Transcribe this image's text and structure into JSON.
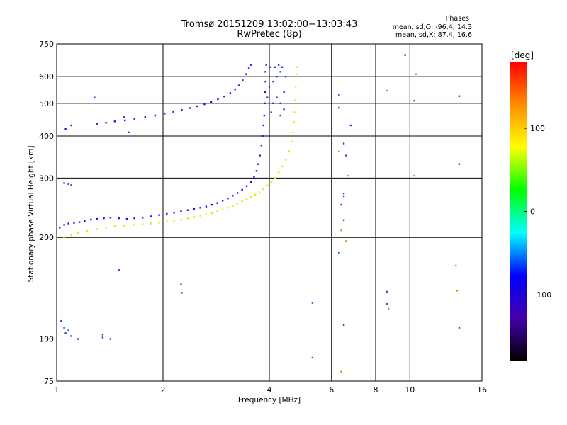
{
  "header": {
    "title_line1": "Tromsø 20151209 13:02:00−13:03:43",
    "title_line2": "RwPretec (8p)"
  },
  "phase_box": {
    "heading": "Phases",
    "line_o": "mean, sd,O: -96.4, 14.3",
    "line_x": "mean, sd,X: 87.4, 16.6"
  },
  "colorbar": {
    "unit": "[deg]",
    "range": [
      -180,
      180
    ],
    "tick_labels": [
      "100",
      "0",
      "−100"
    ],
    "tick_values": [
      100,
      0,
      -100
    ],
    "stops": [
      "#ff0000",
      "#ff8c00",
      "#ffff00",
      "#00ff00",
      "#00ffff",
      "#0000ff",
      "#4400aa",
      "#000000"
    ]
  },
  "chart_data": {
    "type": "scatter",
    "xlabel": "Frequency [MHz]",
    "ylabel": "Stationary phase Virtual Height [km]",
    "xscale": "log2",
    "yscale": "log",
    "xlim": [
      1,
      16
    ],
    "ylim": [
      75,
      750
    ],
    "x_ticks": [
      1,
      2,
      4,
      6,
      8,
      10,
      16
    ],
    "x_tick_labels": [
      "1",
      "2",
      "4",
      "6",
      "8",
      "10",
      "16"
    ],
    "y_ticks": [
      75,
      100,
      200,
      300,
      400,
      500,
      600,
      750
    ],
    "y_tick_labels": [
      "75",
      "100",
      "200",
      "300",
      "400",
      "500",
      "600",
      "750"
    ],
    "grid": true,
    "colors": {
      "o_mode": "#1a1aee",
      "x_mode": "#e8e800",
      "o_alt": "#2a3ae0"
    },
    "series": [
      {
        "points": [
          [
            1.02,
            214
          ],
          [
            1.05,
            218
          ],
          [
            1.08,
            220
          ],
          [
            1.12,
            221
          ],
          [
            1.16,
            222
          ],
          [
            1.2,
            224
          ],
          [
            1.25,
            226
          ],
          [
            1.3,
            227
          ],
          [
            1.36,
            228
          ],
          [
            1.42,
            229
          ],
          [
            1.5,
            228
          ],
          [
            1.58,
            227
          ],
          [
            1.66,
            228
          ],
          [
            1.75,
            229
          ],
          [
            1.85,
            231
          ],
          [
            1.95,
            233
          ],
          [
            2.05,
            235
          ],
          [
            2.15,
            237
          ],
          [
            2.25,
            239
          ],
          [
            2.35,
            241
          ],
          [
            2.45,
            243
          ],
          [
            2.55,
            245
          ],
          [
            2.65,
            247
          ],
          [
            2.75,
            250
          ],
          [
            2.85,
            253
          ],
          [
            2.95,
            257
          ],
          [
            3.05,
            261
          ],
          [
            3.15,
            266
          ],
          [
            3.25,
            271
          ],
          [
            3.35,
            277
          ],
          [
            3.45,
            284
          ],
          [
            3.55,
            292
          ],
          [
            3.62,
            302
          ],
          [
            3.68,
            315
          ],
          [
            3.72,
            330
          ],
          [
            3.76,
            350
          ],
          [
            3.8,
            375
          ],
          [
            3.83,
            400
          ],
          [
            3.85,
            430
          ],
          [
            3.87,
            460
          ],
          [
            3.88,
            500
          ],
          [
            3.89,
            540
          ],
          [
            3.9,
            580
          ],
          [
            3.9,
            620
          ],
          [
            3.92,
            650
          ],
          [
            1.3,
            435
          ],
          [
            1.38,
            438
          ],
          [
            1.46,
            442
          ],
          [
            1.56,
            445
          ],
          [
            1.66,
            450
          ],
          [
            1.78,
            455
          ],
          [
            1.9,
            460
          ],
          [
            2.02,
            466
          ],
          [
            2.14,
            472
          ],
          [
            2.26,
            478
          ],
          [
            2.38,
            484
          ],
          [
            2.5,
            490
          ],
          [
            2.62,
            497
          ],
          [
            2.74,
            505
          ],
          [
            2.86,
            514
          ],
          [
            2.98,
            524
          ],
          [
            3.1,
            536
          ],
          [
            3.2,
            550
          ],
          [
            3.28,
            565
          ],
          [
            3.36,
            585
          ],
          [
            3.44,
            610
          ],
          [
            3.5,
            635
          ],
          [
            3.55,
            650
          ],
          [
            1.06,
            420
          ],
          [
            1.1,
            430
          ]
        ]
      },
      {
        "points": [
          [
            1.05,
            200
          ],
          [
            1.1,
            203
          ],
          [
            1.15,
            206
          ],
          [
            1.22,
            209
          ],
          [
            1.3,
            212
          ],
          [
            1.38,
            214
          ],
          [
            1.46,
            216
          ],
          [
            1.55,
            217
          ],
          [
            1.65,
            218
          ],
          [
            1.75,
            219
          ],
          [
            1.85,
            220
          ],
          [
            1.95,
            221
          ],
          [
            2.05,
            223
          ],
          [
            2.15,
            224
          ],
          [
            2.25,
            226
          ],
          [
            2.35,
            228
          ],
          [
            2.45,
            230
          ],
          [
            2.55,
            232
          ],
          [
            2.65,
            234
          ],
          [
            2.75,
            236
          ],
          [
            2.85,
            239
          ],
          [
            2.95,
            242
          ],
          [
            3.05,
            245
          ],
          [
            3.15,
            248
          ],
          [
            3.25,
            252
          ],
          [
            3.35,
            256
          ],
          [
            3.45,
            260
          ],
          [
            3.55,
            264
          ],
          [
            3.65,
            268
          ],
          [
            3.75,
            272
          ],
          [
            3.85,
            278
          ],
          [
            3.95,
            285
          ],
          [
            4.05,
            292
          ],
          [
            4.15,
            300
          ],
          [
            4.25,
            312
          ],
          [
            4.35,
            325
          ],
          [
            4.45,
            340
          ],
          [
            4.55,
            360
          ],
          [
            4.62,
            385
          ],
          [
            4.66,
            410
          ],
          [
            4.69,
            440
          ],
          [
            4.71,
            470
          ],
          [
            4.73,
            510
          ],
          [
            4.75,
            560
          ],
          [
            4.77,
            610
          ],
          [
            4.78,
            640
          ]
        ]
      },
      {
        "points": [
          [
            4.0,
            560
          ],
          [
            4.1,
            580
          ],
          [
            4.2,
            600
          ],
          [
            4.3,
            620
          ],
          [
            4.35,
            640
          ],
          [
            4.2,
            520
          ],
          [
            4.1,
            500
          ],
          [
            4.05,
            470
          ],
          [
            4.4,
            540
          ],
          [
            4.45,
            600
          ],
          [
            4.25,
            650
          ],
          [
            4.15,
            640
          ],
          [
            4.02,
            640
          ],
          [
            4.3,
            500
          ],
          [
            3.95,
            520
          ],
          [
            4.4,
            480
          ],
          [
            4.3,
            460
          ]
        ]
      },
      {
        "points": [
          [
            1.03,
            113
          ],
          [
            1.05,
            108
          ],
          [
            1.08,
            106
          ],
          [
            1.06,
            104
          ],
          [
            1.1,
            102
          ],
          [
            1.15,
            100
          ],
          [
            1.35,
            101
          ],
          [
            1.42,
            100
          ],
          [
            1.35,
            103
          ],
          [
            1.05,
            290
          ],
          [
            1.08,
            288
          ],
          [
            1.1,
            286
          ],
          [
            1.28,
            520
          ],
          [
            1.55,
            455
          ],
          [
            1.6,
            410
          ],
          [
            2.25,
            145
          ],
          [
            2.26,
            137
          ],
          [
            1.5,
            160
          ],
          [
            6.3,
            530
          ],
          [
            6.3,
            485
          ],
          [
            6.5,
            380
          ],
          [
            6.6,
            350
          ],
          [
            6.8,
            430
          ],
          [
            6.5,
            270
          ],
          [
            6.5,
            265
          ],
          [
            6.4,
            250
          ],
          [
            6.5,
            225
          ],
          [
            6.3,
            180
          ],
          [
            6.5,
            110
          ],
          [
            8.6,
            138
          ],
          [
            8.6,
            127
          ],
          [
            10.3,
            509
          ],
          [
            13.8,
            525
          ],
          [
            13.8,
            330
          ],
          [
            13.8,
            108
          ],
          [
            5.3,
            128
          ],
          [
            5.3,
            88
          ],
          [
            9.7,
            695
          ]
        ]
      },
      {
        "points": [
          [
            6.3,
            360
          ],
          [
            6.4,
            210
          ],
          [
            6.4,
            80
          ],
          [
            8.6,
            545
          ],
          [
            8.7,
            123
          ],
          [
            13.5,
            165
          ],
          [
            13.6,
            139
          ],
          [
            6.7,
            305
          ],
          [
            6.6,
            195
          ],
          [
            10.3,
            305
          ],
          [
            10.4,
            610
          ]
        ]
      }
    ]
  }
}
